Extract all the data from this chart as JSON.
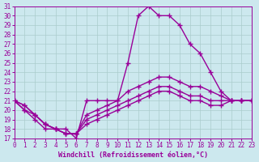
{
  "xlabel": "Windchill (Refroidissement éolien,°C)",
  "ylabel": "",
  "xlim": [
    0,
    23
  ],
  "ylim": [
    17,
    31
  ],
  "yticks": [
    17,
    18,
    19,
    20,
    21,
    22,
    23,
    24,
    25,
    26,
    27,
    28,
    29,
    30,
    31
  ],
  "xticks": [
    0,
    1,
    2,
    3,
    4,
    5,
    6,
    7,
    8,
    9,
    10,
    11,
    12,
    13,
    14,
    15,
    16,
    17,
    18,
    19,
    20,
    21,
    22,
    23
  ],
  "bg_color": "#cce8ee",
  "line_color": "#990099",
  "grid_color": "#aacccc",
  "lines": [
    {
      "x": [
        0,
        1,
        2,
        3,
        4,
        5,
        6,
        7,
        8,
        9,
        10,
        11,
        12,
        13,
        14,
        15,
        16,
        17,
        18,
        19,
        20,
        21,
        22,
        23
      ],
      "y": [
        21,
        20,
        19,
        18,
        18,
        18,
        17,
        21,
        21,
        21,
        21,
        25,
        30,
        31,
        30,
        30,
        29,
        27,
        26,
        24,
        22,
        21,
        21,
        21
      ]
    },
    {
      "x": [
        0,
        1,
        2,
        3,
        4,
        5,
        6,
        7,
        8,
        9,
        10,
        11,
        12,
        13,
        14,
        15,
        16,
        17,
        18,
        19,
        20,
        21,
        22,
        23
      ],
      "y": [
        21,
        20,
        19.5,
        18.5,
        18,
        17.5,
        17.5,
        19.5,
        20,
        20.5,
        21,
        22,
        22.5,
        23,
        23.5,
        23.5,
        23,
        22.5,
        22.5,
        22,
        21.5,
        21,
        21,
        21
      ]
    },
    {
      "x": [
        0,
        1,
        2,
        3,
        4,
        5,
        6,
        7,
        8,
        9,
        10,
        11,
        12,
        13,
        14,
        15,
        16,
        17,
        18,
        19,
        20,
        21,
        22,
        23
      ],
      "y": [
        21,
        20.5,
        19.5,
        18.5,
        18,
        17.5,
        17.5,
        19,
        19.5,
        20,
        20.5,
        21,
        21.5,
        22,
        22.5,
        22.5,
        22,
        21.5,
        21.5,
        21,
        21,
        21,
        21,
        21
      ]
    },
    {
      "x": [
        0,
        1,
        2,
        3,
        4,
        5,
        6,
        7,
        8,
        9,
        10,
        11,
        12,
        13,
        14,
        15,
        16,
        17,
        18,
        19,
        20,
        21,
        22,
        23
      ],
      "y": [
        21,
        20.5,
        19.5,
        18.5,
        18,
        17.5,
        17.5,
        18.5,
        19,
        19.5,
        20,
        20.5,
        21,
        21.5,
        22,
        22,
        21.5,
        21,
        21,
        20.5,
        20.5,
        21,
        21,
        21
      ]
    }
  ],
  "marker": "+",
  "markersize": 4,
  "linewidth": 1.0,
  "label_fontsize": 6.0,
  "tick_fontsize": 5.5
}
